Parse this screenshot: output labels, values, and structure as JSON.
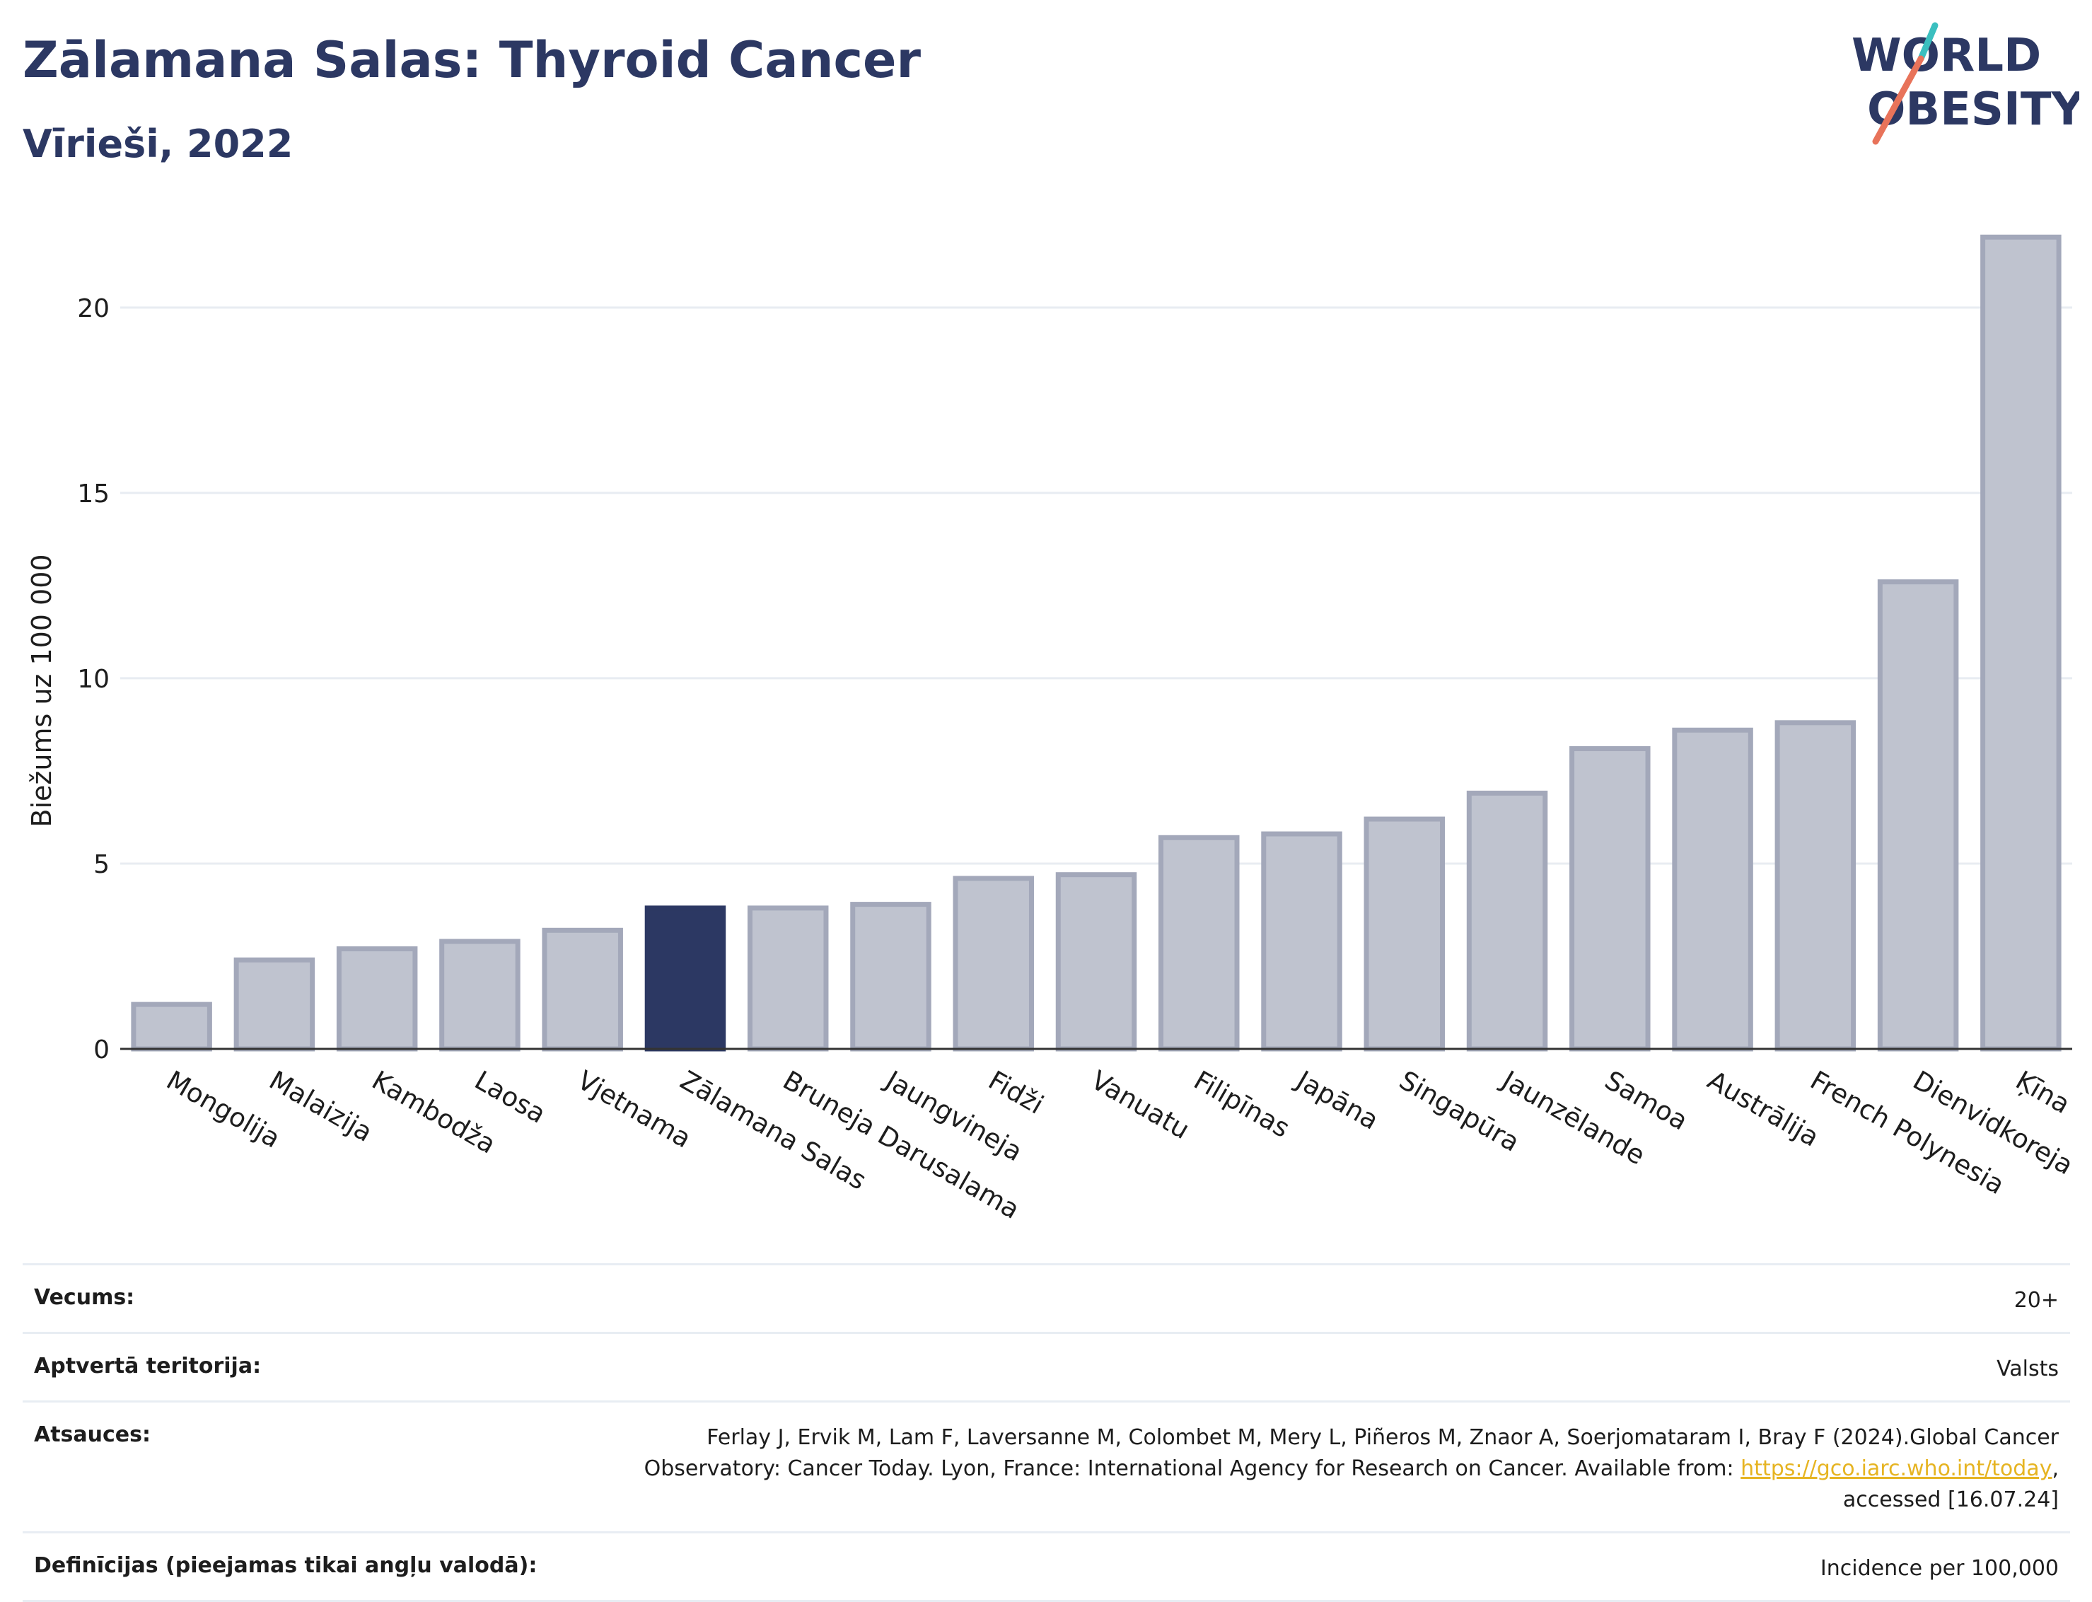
{
  "header": {
    "title": "Zālamana Salas: Thyroid Cancer",
    "subtitle": "Vīrieši, 2022"
  },
  "logo": {
    "line1": "WORLD",
    "line2": "OBESITY"
  },
  "colors": {
    "highlight": "#2c3863",
    "bar_fill": "#bfc3cf",
    "bar_stroke": "#a3a8ba",
    "title": "#2c3863",
    "logo_teal": "#3bbfbf",
    "logo_coral": "#e8735a"
  },
  "chart_data": {
    "type": "bar",
    "title": "Zālamana Salas: Thyroid Cancer",
    "subtitle": "Vīrieši, 2022",
    "ylabel": "Biežums uz 100 000",
    "xlabel": "",
    "ylim": [
      0,
      22
    ],
    "yticks": [
      0,
      5,
      10,
      15,
      20
    ],
    "grid": true,
    "highlight_category": "Zālamana Salas",
    "categories": [
      "Mongolija",
      "Malaizija",
      "Kambodža",
      "Laosa",
      "Vjetnama",
      "Zālamana Salas",
      "Bruneja Darusalama",
      "Jaungvineja",
      "Fidži",
      "Vanuatu",
      "Filipīnas",
      "Japāna",
      "Singapūra",
      "Jaunzēlande",
      "Samoa",
      "Austrālija",
      "French Polynesia",
      "Dienvidkoreja",
      "Ķīna"
    ],
    "values": [
      1.2,
      2.4,
      2.7,
      2.9,
      3.2,
      3.8,
      3.8,
      3.9,
      4.6,
      4.7,
      5.7,
      5.8,
      6.2,
      6.9,
      8.1,
      8.6,
      8.8,
      12.6,
      21.9
    ]
  },
  "info_table": {
    "age": {
      "label": "Vecums:",
      "value": "20+"
    },
    "coverage": {
      "label": "Aptvertā teritorija:",
      "value": "Valsts"
    },
    "references": {
      "label": "Atsauces:",
      "text1": "Ferlay J, Ervik M, Lam F, Laversanne M, Colombet M, Mery L, Piñeros M, Znaor A, Soerjomataram I, Bray F (2024).Global Cancer",
      "text2": "Observatory: Cancer Today. Lyon, France: International Agency for Research on Cancer. Available from: ",
      "link": "https://gco.iarc.who.int/today",
      "text3": ",",
      "text4": "accessed [16.07.24]"
    },
    "definitions": {
      "label": "Definīcijas (pieejamas tikai angļu valodā):",
      "value": "Incidence per 100,000"
    }
  }
}
